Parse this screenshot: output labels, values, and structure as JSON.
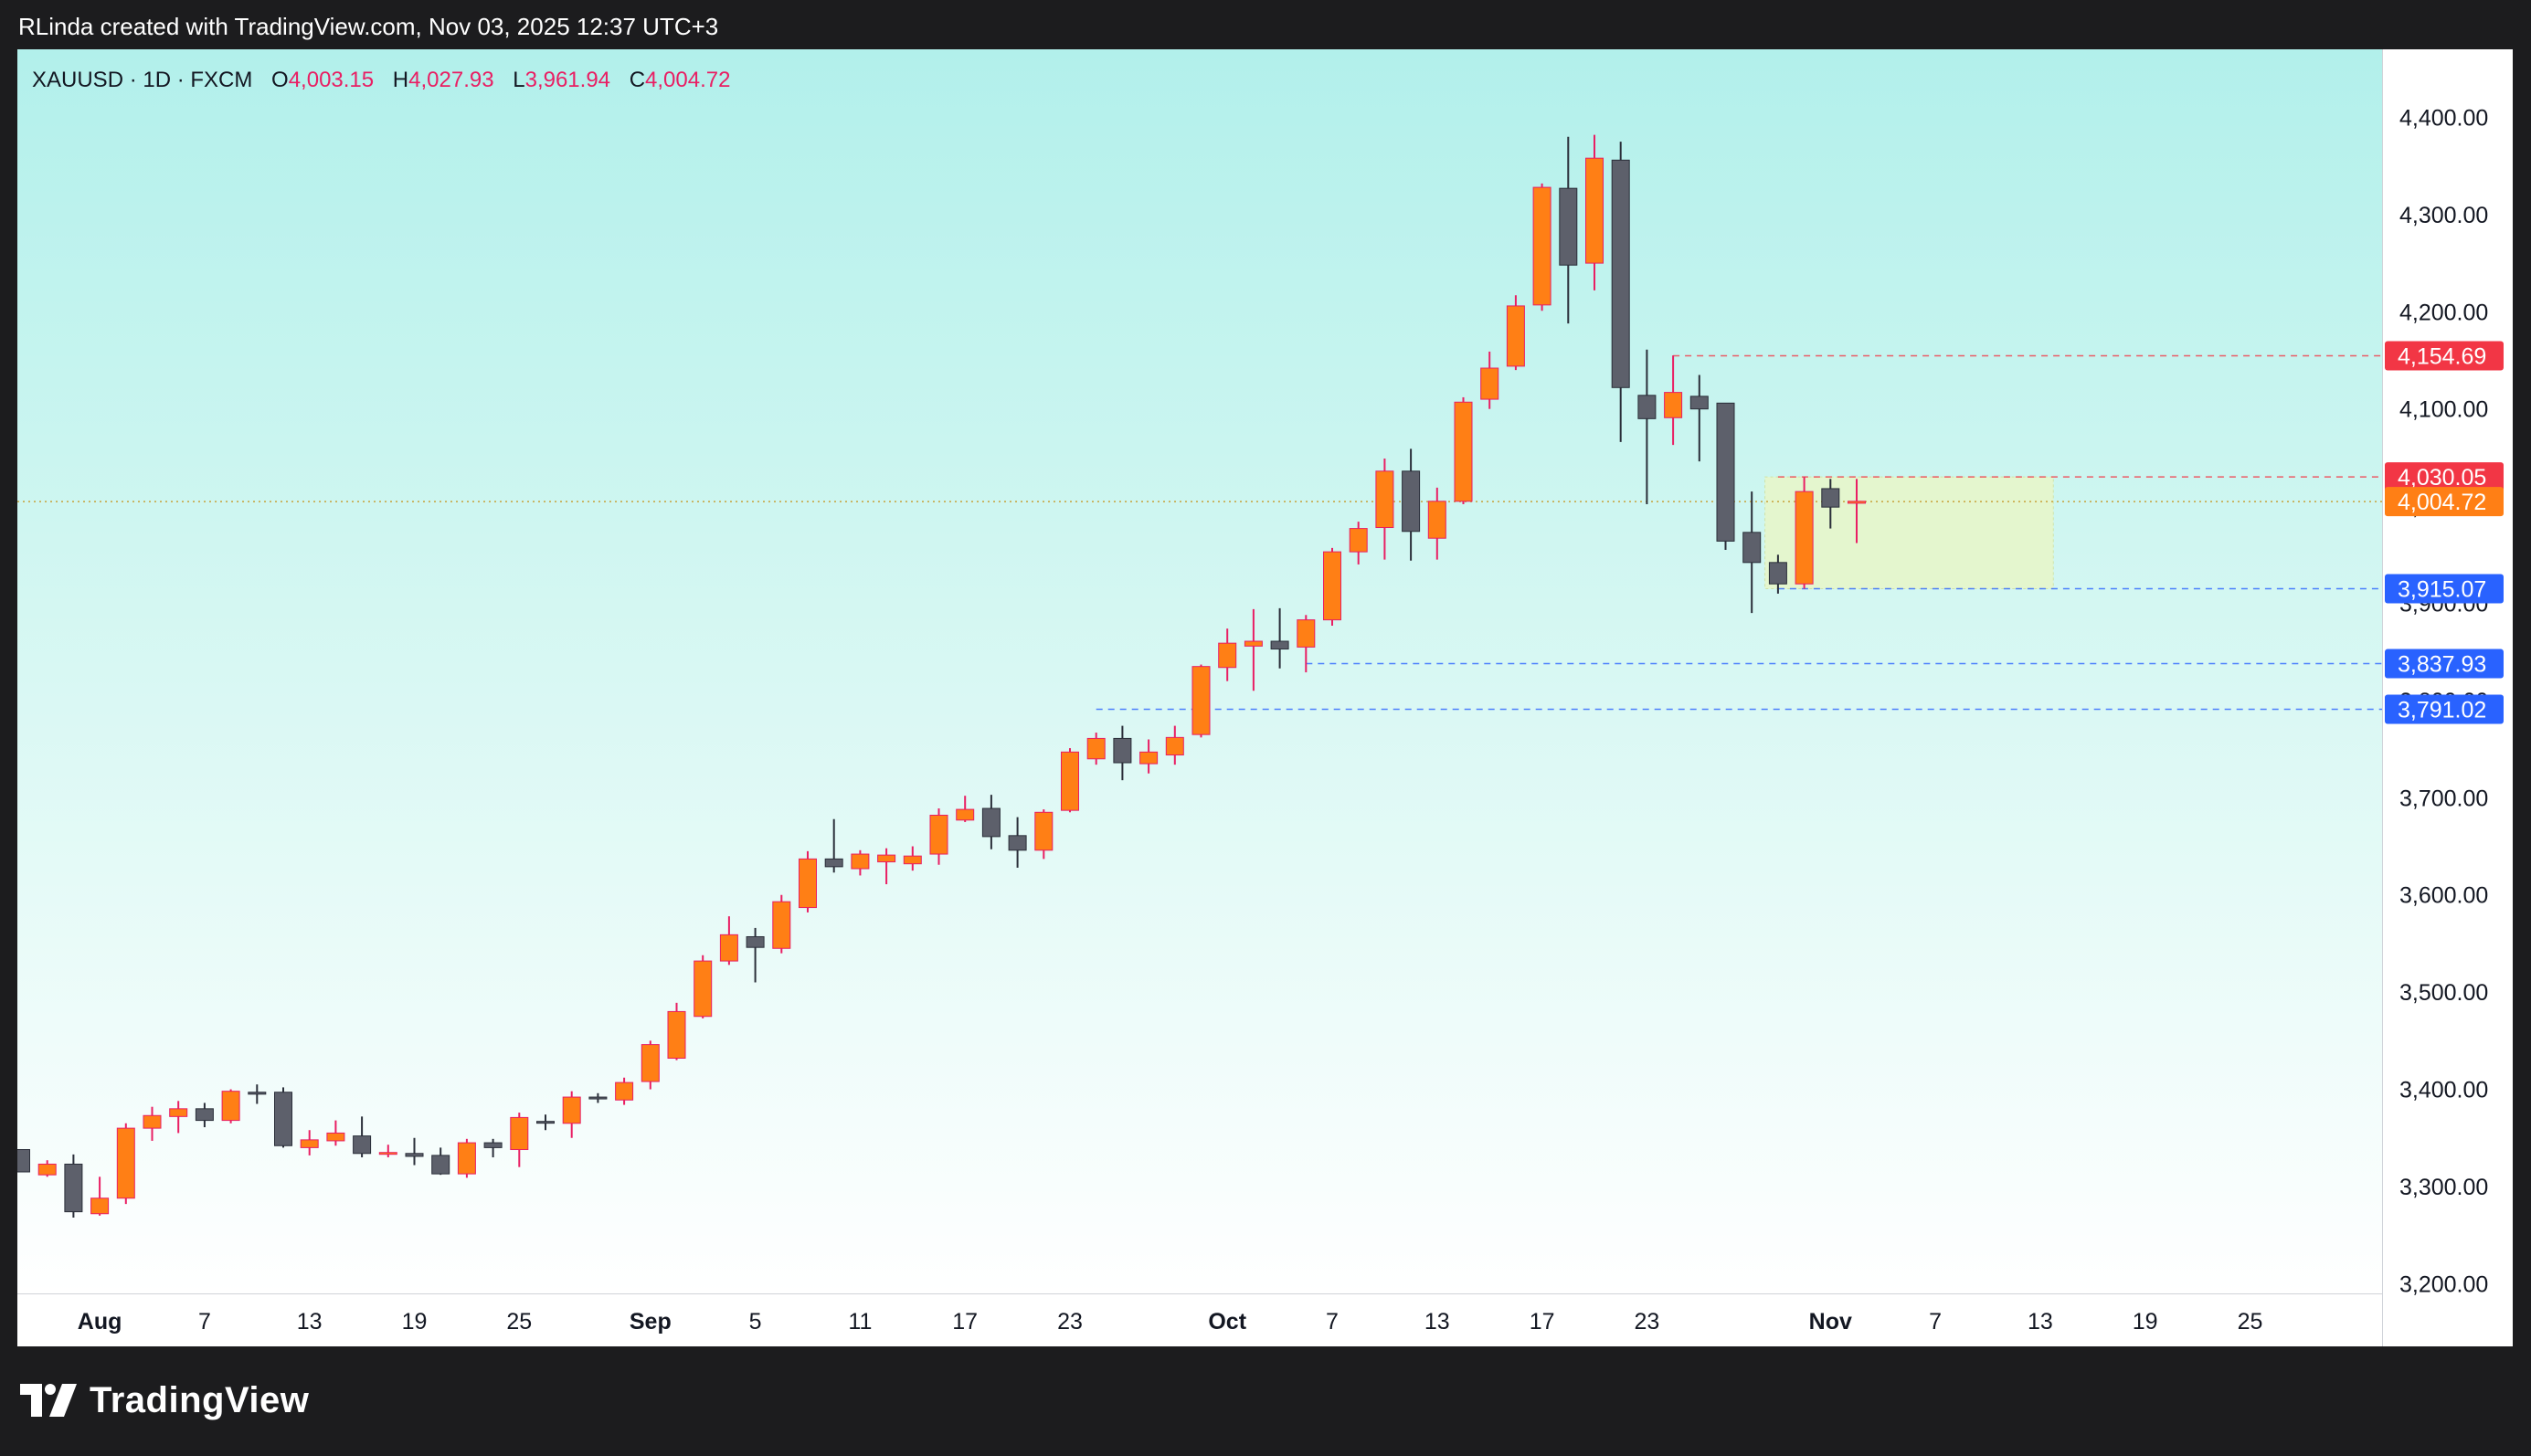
{
  "header": {
    "credit": "RLinda created with TradingView.com, Nov 03, 2025 12:37 UTC+3"
  },
  "legend": {
    "symbol": "XAUUSD · 1D · FXCM",
    "open_label": "O",
    "open": "4,003.15",
    "high_label": "H",
    "high": "4,027.93",
    "low_label": "L",
    "low": "3,961.94",
    "close_label": "C",
    "close": "4,004.72"
  },
  "footer": {
    "brand": "TradingView"
  },
  "colors": {
    "up": "#ff7f15",
    "down": "#5d606b",
    "up_wick": "#e91e63",
    "down_wick": "#2a2e39",
    "red_label": "#f23645",
    "blue_label": "#2962ff",
    "current_label": "#ff7f15"
  },
  "chart_data": {
    "type": "candlestick",
    "symbol": "XAUUSD",
    "interval": "1D",
    "broker": "FXCM",
    "y_ticks": [
      3200,
      3300,
      3400,
      3500,
      3600,
      3700,
      3800,
      3900,
      4000,
      4100,
      4200,
      4300,
      4400
    ],
    "y_tick_labels": [
      "3,200.00",
      "3,300.00",
      "3,400.00",
      "3,500.00",
      "3,600.00",
      "3,700.00",
      "3,800.00",
      "3,900.00",
      "4,000.00",
      "4,100.00",
      "4,200.00",
      "4,300.00",
      "4,400.00"
    ],
    "ylim": [
      3190,
      4470
    ],
    "x_ticks": [
      {
        "i": 3,
        "label": "Aug",
        "bold": true
      },
      {
        "i": 7,
        "label": "7"
      },
      {
        "i": 11,
        "label": "13"
      },
      {
        "i": 15,
        "label": "19"
      },
      {
        "i": 19,
        "label": "25"
      },
      {
        "i": 24,
        "label": "Sep",
        "bold": true
      },
      {
        "i": 28,
        "label": "5"
      },
      {
        "i": 32,
        "label": "11"
      },
      {
        "i": 36,
        "label": "17"
      },
      {
        "i": 40,
        "label": "23"
      },
      {
        "i": 46,
        "label": "Oct",
        "bold": true
      },
      {
        "i": 50,
        "label": "7"
      },
      {
        "i": 54,
        "label": "13"
      },
      {
        "i": 58,
        "label": "17"
      },
      {
        "i": 62,
        "label": "23"
      },
      {
        "i": 69,
        "label": "Nov",
        "bold": true
      },
      {
        "i": 73,
        "label": "7"
      },
      {
        "i": 77,
        "label": "13"
      },
      {
        "i": 81,
        "label": "19"
      },
      {
        "i": 85,
        "label": "25"
      }
    ],
    "candles": [
      [
        3338,
        3338,
        3315,
        3315
      ],
      [
        3312,
        3327,
        3310,
        3323
      ],
      [
        3323,
        3333,
        3268,
        3274
      ],
      [
        3272,
        3310,
        3270,
        3288
      ],
      [
        3288,
        3365,
        3282,
        3360
      ],
      [
        3360,
        3382,
        3347,
        3373
      ],
      [
        3372,
        3388,
        3355,
        3380
      ],
      [
        3380,
        3386,
        3361,
        3368
      ],
      [
        3368,
        3400,
        3365,
        3398
      ],
      [
        3397,
        3405,
        3385,
        3395
      ],
      [
        3397,
        3402,
        3340,
        3342
      ],
      [
        3340,
        3358,
        3332,
        3348
      ],
      [
        3347,
        3368,
        3342,
        3355
      ],
      [
        3352,
        3372,
        3330,
        3334
      ],
      [
        3334,
        3343,
        3330,
        3335
      ],
      [
        3334,
        3350,
        3322,
        3331
      ],
      [
        3332,
        3340,
        3312,
        3313
      ],
      [
        3313,
        3349,
        3309,
        3345
      ],
      [
        3345,
        3349,
        3330,
        3340
      ],
      [
        3338,
        3376,
        3320,
        3371
      ],
      [
        3367,
        3374,
        3358,
        3366
      ],
      [
        3365,
        3398,
        3350,
        3392
      ],
      [
        3392,
        3396,
        3386,
        3391
      ],
      [
        3389,
        3412,
        3384,
        3407
      ],
      [
        3408,
        3450,
        3400,
        3446
      ],
      [
        3432,
        3489,
        3430,
        3480
      ],
      [
        3475,
        3538,
        3473,
        3532
      ],
      [
        3532,
        3578,
        3528,
        3559
      ],
      [
        3557,
        3566,
        3510,
        3546
      ],
      [
        3545,
        3600,
        3540,
        3593
      ],
      [
        3587,
        3645,
        3582,
        3637
      ],
      [
        3637,
        3678,
        3623,
        3629
      ],
      [
        3627,
        3646,
        3620,
        3642
      ],
      [
        3634,
        3648,
        3611,
        3641
      ],
      [
        3632,
        3650,
        3625,
        3640
      ],
      [
        3642,
        3689,
        3631,
        3682
      ],
      [
        3677,
        3702,
        3675,
        3688
      ],
      [
        3689,
        3703,
        3647,
        3660
      ],
      [
        3661,
        3680,
        3628,
        3646
      ],
      [
        3646,
        3688,
        3637,
        3685
      ],
      [
        3687,
        3751,
        3685,
        3747
      ],
      [
        3740,
        3767,
        3734,
        3761
      ],
      [
        3761,
        3774,
        3718,
        3736
      ],
      [
        3735,
        3760,
        3725,
        3747
      ],
      [
        3744,
        3774,
        3734,
        3762
      ],
      [
        3765,
        3837,
        3762,
        3835
      ],
      [
        3834,
        3874,
        3820,
        3859
      ],
      [
        3856,
        3894,
        3810,
        3861
      ],
      [
        3861,
        3895,
        3833,
        3853
      ],
      [
        3855,
        3888,
        3829,
        3883
      ],
      [
        3883,
        3957,
        3877,
        3953
      ],
      [
        3953,
        3984,
        3940,
        3977
      ],
      [
        3978,
        4049,
        3945,
        4036
      ],
      [
        4036,
        4059,
        3944,
        3974
      ],
      [
        3967,
        4019,
        3945,
        4005
      ],
      [
        4005,
        4112,
        4002,
        4107
      ],
      [
        4110,
        4159,
        4100,
        4142
      ],
      [
        4144,
        4217,
        4140,
        4206
      ],
      [
        4207,
        4332,
        4201,
        4328
      ],
      [
        4327,
        4380,
        4188,
        4248
      ],
      [
        4250,
        4382,
        4222,
        4358
      ],
      [
        4356,
        4375,
        4066,
        4122
      ],
      [
        4114,
        4161,
        4002,
        4090
      ],
      [
        4091,
        4155,
        4063,
        4117
      ],
      [
        4113,
        4135,
        4046,
        4100
      ],
      [
        4106,
        4106,
        3955,
        3964
      ],
      [
        3973,
        4015,
        3890,
        3942
      ],
      [
        3942,
        3950,
        3910,
        3920
      ],
      [
        3920,
        4030,
        3915,
        4015
      ],
      [
        4018,
        4028,
        3977,
        3999
      ],
      [
        4003,
        4028,
        3962,
        4005
      ]
    ],
    "levels": [
      {
        "price": 4154.69,
        "label": "4,154.69",
        "color": "#f23645",
        "start_index": 63
      },
      {
        "price": 4030.05,
        "label": "4,030.05",
        "color": "#f23645",
        "start_index": 67
      },
      {
        "price": 3915.07,
        "label": "3,915.07",
        "color": "#2962ff",
        "start_index": 67
      },
      {
        "price": 3837.93,
        "label": "3,837.93",
        "color": "#2962ff",
        "start_index": 49
      },
      {
        "price": 3791.02,
        "label": "3,791.02",
        "color": "#2962ff",
        "start_index": 41
      }
    ],
    "current_price": {
      "price": 4004.72,
      "label": "4,004.72",
      "color": "#ff7f15"
    },
    "zone": {
      "from_index": 67,
      "to_index": 77,
      "top": 4030.05,
      "bottom": 3915.07,
      "color": "#e8f6c8"
    }
  }
}
